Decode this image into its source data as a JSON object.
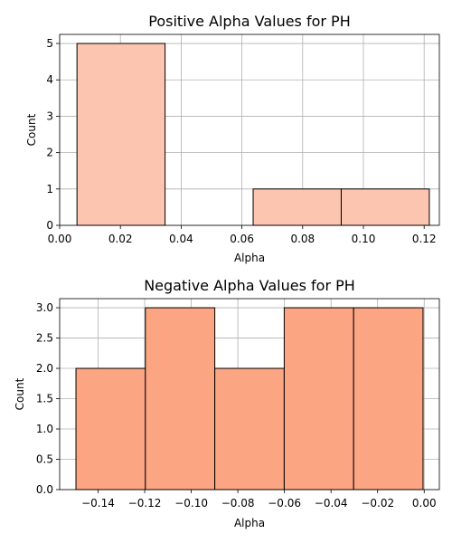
{
  "chart_data": [
    {
      "type": "bar",
      "title": "Positive Alpha Values for PH",
      "xlabel": "Alpha",
      "ylabel": "Count",
      "xlim": [
        0.0,
        0.125
      ],
      "ylim": [
        0,
        5.25
      ],
      "xticks": [
        "0.00",
        "0.02",
        "0.04",
        "0.06",
        "0.08",
        "0.10",
        "0.12"
      ],
      "xtick_values": [
        0.0,
        0.02,
        0.04,
        0.06,
        0.08,
        0.1,
        0.12
      ],
      "yticks": [
        "0",
        "1",
        "2",
        "3",
        "4",
        "5"
      ],
      "ytick_values": [
        0,
        1,
        2,
        3,
        4,
        5
      ],
      "bins": [
        {
          "start": 0.0057,
          "end": 0.0347,
          "count": 5
        },
        {
          "start": 0.0347,
          "end": 0.0637,
          "count": 0
        },
        {
          "start": 0.0637,
          "end": 0.0927,
          "count": 1
        },
        {
          "start": 0.0927,
          "end": 0.1217,
          "count": 1
        }
      ],
      "color": "#fcc5af",
      "grid": true
    },
    {
      "type": "bar",
      "title": "Negative Alpha Values for PH",
      "xlabel": "Alpha",
      "ylabel": "Count",
      "xlim": [
        -0.1565,
        0.0065
      ],
      "ylim": [
        0,
        3.15
      ],
      "xticks": [
        "−0.14",
        "−0.12",
        "−0.10",
        "−0.08",
        "−0.06",
        "−0.04",
        "−0.02",
        "0.00"
      ],
      "xtick_values": [
        -0.14,
        -0.12,
        -0.1,
        -0.08,
        -0.06,
        -0.04,
        -0.02,
        0.0
      ],
      "yticks": [
        "0.0",
        "0.5",
        "1.0",
        "1.5",
        "2.0",
        "2.5",
        "3.0"
      ],
      "ytick_values": [
        0.0,
        0.5,
        1.0,
        1.5,
        2.0,
        2.5,
        3.0
      ],
      "bins": [
        {
          "start": -0.1495,
          "end": -0.1197,
          "count": 2
        },
        {
          "start": -0.1197,
          "end": -0.0899,
          "count": 3
        },
        {
          "start": -0.0899,
          "end": -0.0601,
          "count": 2
        },
        {
          "start": -0.0601,
          "end": -0.0303,
          "count": 3
        },
        {
          "start": -0.0303,
          "end": -0.0005,
          "count": 3
        }
      ],
      "color": "#fca583",
      "grid": true
    }
  ]
}
